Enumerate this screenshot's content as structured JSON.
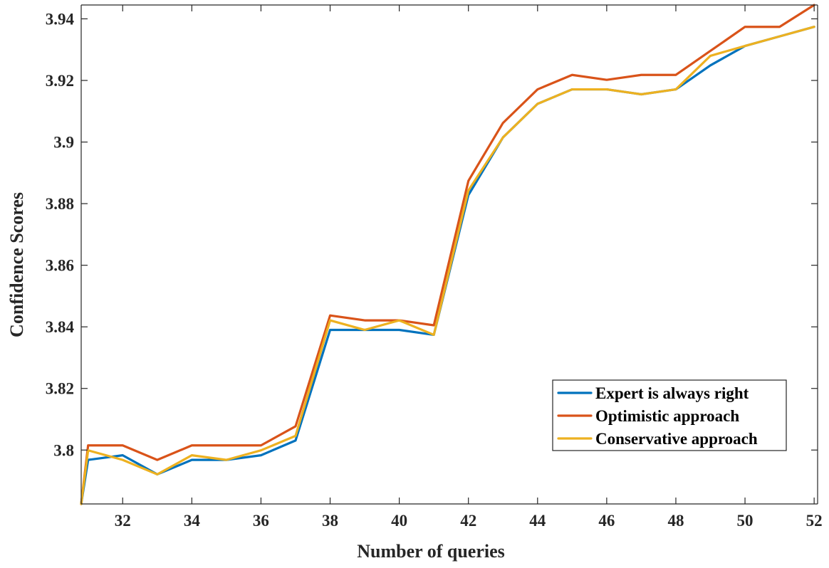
{
  "chart_data": {
    "type": "line",
    "xlabel": "Number of queries",
    "ylabel": "Confidence Scores",
    "xlim": [
      30.8,
      52.1
    ],
    "ylim": [
      3.7825,
      3.9445
    ],
    "xticks": [
      32,
      34,
      36,
      38,
      40,
      42,
      44,
      46,
      48,
      50,
      52
    ],
    "yticks": [
      3.8,
      3.82,
      3.84,
      3.86,
      3.88,
      3.9,
      3.92,
      3.94
    ],
    "ytick_labels": [
      "3.8",
      "3.82",
      "3.84",
      "3.86",
      "3.88",
      "3.9",
      "3.92",
      "3.94"
    ],
    "grid": false,
    "legend_placement": "lower-right",
    "x": [
      30.8,
      31,
      32,
      33,
      34,
      35,
      36,
      37,
      38,
      39,
      40,
      41,
      42,
      43,
      44,
      45,
      46,
      47,
      48,
      49,
      50,
      51,
      52
    ],
    "series": [
      {
        "name": "Expert is always right",
        "color": "#0072BD",
        "values": [
          3.7825,
          3.7968,
          3.7983,
          3.7921,
          3.7968,
          3.7968,
          3.7983,
          3.8031,
          3.839,
          3.839,
          3.839,
          3.8374,
          3.8828,
          3.9015,
          3.9124,
          3.9171,
          3.9171,
          3.9155,
          3.9171,
          3.9249,
          3.9312,
          3.9343,
          3.9374
        ]
      },
      {
        "name": "Optimistic approach",
        "color": "#D95319",
        "values": [
          3.7825,
          3.8015,
          3.8015,
          3.7968,
          3.8015,
          3.8015,
          3.8015,
          3.8077,
          3.8437,
          3.8421,
          3.8421,
          3.8405,
          3.8874,
          3.9062,
          3.9171,
          3.9218,
          3.9202,
          3.9218,
          3.9218,
          3.9296,
          3.9374,
          3.9374,
          3.9445
        ]
      },
      {
        "name": "Conservative approach",
        "color": "#EDB120",
        "values": [
          3.7825,
          3.7999,
          3.7968,
          3.7921,
          3.7983,
          3.7968,
          3.7999,
          3.8046,
          3.8421,
          3.839,
          3.8421,
          3.8374,
          3.8843,
          3.9015,
          3.9124,
          3.9171,
          3.9171,
          3.9155,
          3.9171,
          3.928,
          3.9312,
          3.9343,
          3.9374
        ]
      }
    ]
  }
}
